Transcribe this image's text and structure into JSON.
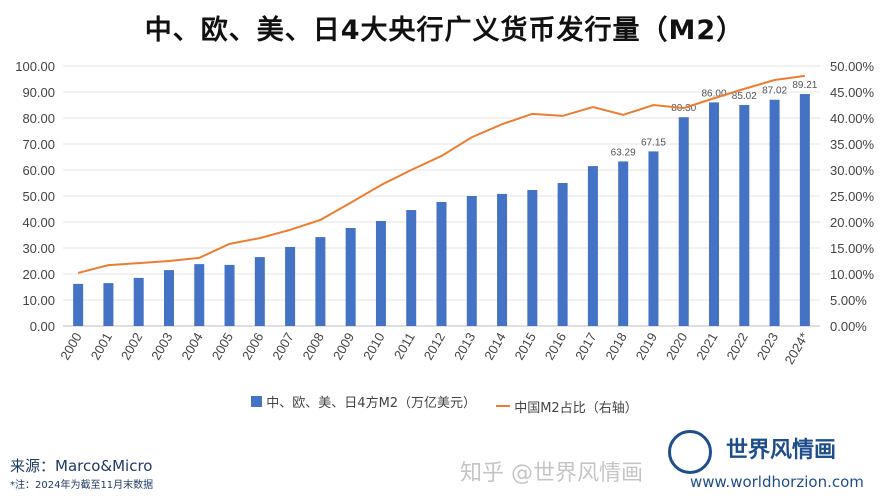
{
  "title": "中、欧、美、日4大央行广义货币发行量（M2）",
  "chart_data": {
    "type": "bar+line",
    "categories": [
      "2000",
      "2001",
      "2002",
      "2003",
      "2004",
      "2005",
      "2006",
      "2007",
      "2008",
      "2009",
      "2010",
      "2011",
      "2012",
      "2013",
      "2014",
      "2015",
      "2016",
      "2017",
      "2018",
      "2019",
      "2020",
      "2021",
      "2022",
      "2023",
      "2024*"
    ],
    "series": [
      {
        "name": "中、欧、美、日4方M2（万亿美元）",
        "type": "bar",
        "axis": "left",
        "color": "#4472c4",
        "values": [
          16.2,
          16.5,
          18.5,
          21.5,
          23.8,
          23.5,
          26.5,
          30.4,
          34.2,
          37.7,
          40.4,
          44.6,
          47.7,
          50.0,
          50.8,
          52.3,
          55.0,
          61.5,
          63.29,
          67.15,
          80.3,
          86.0,
          85.02,
          87.02,
          89.21
        ],
        "data_labels": {
          "18": "63.29",
          "19": "67.15",
          "20": "80.30",
          "21": "86.00",
          "22": "85.02",
          "23": "87.02",
          "24": "89.21"
        }
      },
      {
        "name": "中国M2占比（右轴）",
        "type": "line",
        "axis": "right",
        "color": "#ed7d31",
        "values": [
          10.2,
          11.7,
          12.1,
          12.5,
          13.1,
          15.8,
          16.9,
          18.5,
          20.4,
          23.7,
          27.1,
          30.0,
          32.7,
          36.3,
          38.8,
          40.8,
          40.4,
          42.1,
          40.6,
          42.5,
          41.9,
          43.8,
          45.6,
          47.3,
          48.1
        ]
      }
    ],
    "ylim": [
      0,
      100
    ],
    "y_ticks": [
      "0.00",
      "10.00",
      "20.00",
      "30.00",
      "40.00",
      "50.00",
      "60.00",
      "70.00",
      "80.00",
      "90.00",
      "100.00"
    ],
    "y2lim": [
      0,
      50
    ],
    "y2_ticks": [
      "0.00%",
      "5.00%",
      "10.00%",
      "15.00%",
      "20.00%",
      "25.00%",
      "30.00%",
      "35.00%",
      "40.00%",
      "45.00%",
      "50.00%"
    ],
    "grid": true,
    "legend": "bottom"
  },
  "legend": {
    "bar": "中、欧、美、日4方M2（万亿美元）",
    "line": "中国M2占比（右轴）"
  },
  "footer": {
    "source": "来源：Marco&Micro",
    "note": "*注：2024年为截至11月末数据",
    "brand_name": "世界风情画",
    "brand_url": "www.worldhorzion.com",
    "watermark": "知乎 @世界风情画"
  }
}
